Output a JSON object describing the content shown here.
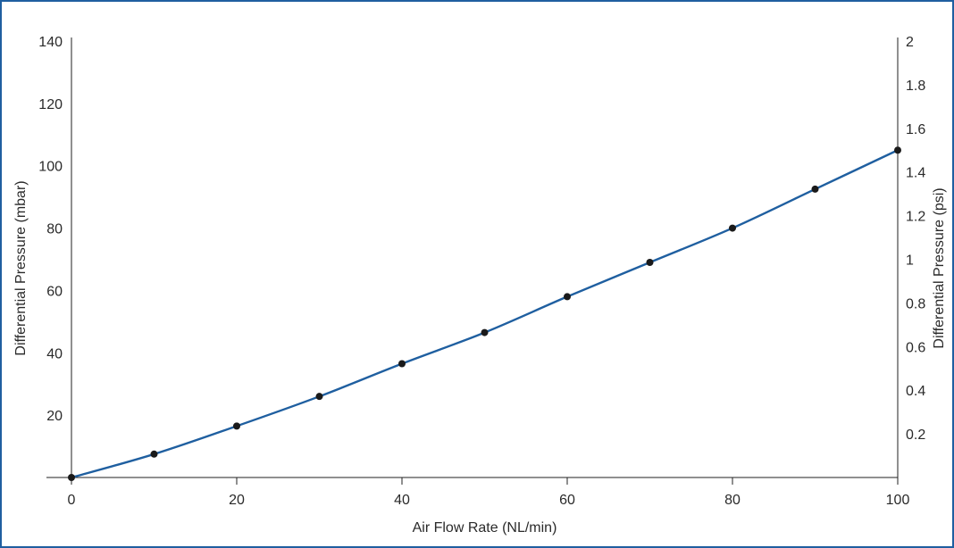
{
  "chart_data": {
    "type": "line",
    "xlabel": "Air Flow Rate (NL/min)",
    "ylabel": "Differential Pressure (mbar)",
    "y2label": "Differential Pressure (psi)",
    "xlim": [
      0,
      100
    ],
    "ylim": [
      0,
      140
    ],
    "y2lim": [
      0,
      2
    ],
    "x_ticks": [
      "0",
      "20",
      "40",
      "60",
      "80",
      "100"
    ],
    "y_ticks": [
      "20",
      "40",
      "60",
      "80",
      "100",
      "120",
      "140"
    ],
    "y2_ticks": [
      "0.2",
      "0.4",
      "0.6",
      "0.8",
      "1",
      "1.2",
      "1.4",
      "1.6",
      "1.8",
      "2"
    ],
    "grid": false,
    "series": [
      {
        "x": [
          0,
          10,
          20,
          30,
          40,
          50,
          60,
          70,
          80,
          90,
          100
        ],
        "values": [
          0,
          7.5,
          16.5,
          26,
          36.5,
          46.5,
          58,
          69,
          80,
          92.5,
          105
        ]
      }
    ],
    "colors": {
      "line": "#1f5fa0",
      "marker": "#1a1a1a",
      "axis": "#222222",
      "frame": "#1f5fa0"
    }
  }
}
